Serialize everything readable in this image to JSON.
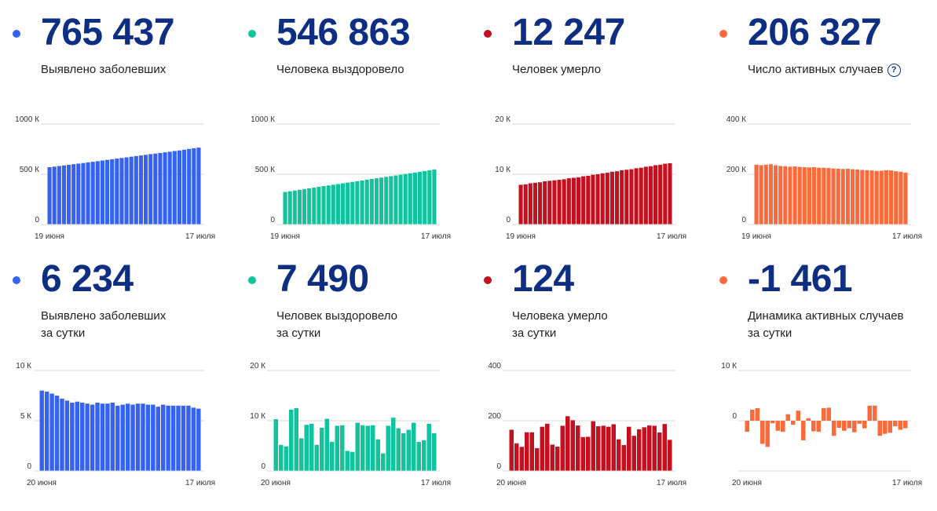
{
  "colors": {
    "detected": "#3562f0",
    "recovered": "#12c49e",
    "deaths": "#c5101f",
    "active": "#fb6a3b",
    "title_number": "#0d2e82"
  },
  "cards": [
    {
      "value": "765 437",
      "label_lines": [
        "Выявлено заболевших"
      ],
      "has_help": false
    },
    {
      "value": "546 863",
      "label_lines": [
        "Человека выздоровело"
      ],
      "has_help": false
    },
    {
      "value": "12 247",
      "label_lines": [
        "Человек умерло"
      ],
      "has_help": false
    },
    {
      "value": "206 327",
      "label_lines": [
        "Число активных случаев"
      ],
      "has_help": true,
      "help_icon": "question-circle-icon",
      "help_text": "?"
    },
    {
      "value": "6 234",
      "label_lines": [
        "Выявлено заболевших",
        "за сутки"
      ],
      "has_help": false
    },
    {
      "value": "7 490",
      "label_lines": [
        "Человек выздоровело",
        "за сутки"
      ],
      "has_help": false
    },
    {
      "value": "124",
      "label_lines": [
        "Человека умерло",
        "за сутки"
      ],
      "has_help": false
    },
    {
      "value": "-1 461",
      "label_lines": [
        "Динамика активных случаев",
        "за сутки"
      ],
      "has_help": false
    }
  ],
  "chart_data": [
    {
      "type": "bar",
      "color_key": "detected",
      "x_start": "19 июня",
      "x_end": "17 июля",
      "yticks": [
        {
          "v": 0,
          "label": "0"
        },
        {
          "v": 500,
          "label": "500 К"
        },
        {
          "v": 1000,
          "label": "1000 К"
        }
      ],
      "ylim": [
        0,
        1000
      ],
      "values": [
        570,
        576,
        582,
        588,
        594,
        600,
        606,
        612,
        618,
        624,
        630,
        637,
        643,
        649,
        656,
        662,
        668,
        675,
        681,
        687,
        693,
        700,
        706,
        712,
        718,
        724,
        731,
        737,
        744,
        752,
        759,
        765
      ]
    },
    {
      "type": "bar",
      "color_key": "recovered",
      "x_start": "19 июня",
      "x_end": "17 июля",
      "yticks": [
        {
          "v": 0,
          "label": "0"
        },
        {
          "v": 500,
          "label": "500 К"
        },
        {
          "v": 1000,
          "label": "1000 К"
        }
      ],
      "ylim": [
        0,
        1000
      ],
      "values": [
        324,
        331,
        338,
        345,
        352,
        360,
        367,
        375,
        382,
        389,
        396,
        403,
        410,
        417,
        424,
        431,
        438,
        446,
        453,
        460,
        467,
        474,
        481,
        488,
        495,
        503,
        510,
        517,
        524,
        532,
        539,
        547
      ]
    },
    {
      "type": "bar",
      "color_key": "deaths",
      "x_start": "19 июня",
      "x_end": "17 июля",
      "yticks": [
        {
          "v": 0,
          "label": "0"
        },
        {
          "v": 10,
          "label": "10 К"
        },
        {
          "v": 20,
          "label": "20 К"
        }
      ],
      "ylim": [
        0,
        20
      ],
      "values": [
        7.9,
        8.0,
        8.2,
        8.3,
        8.4,
        8.6,
        8.7,
        8.8,
        8.9,
        9.0,
        9.2,
        9.3,
        9.4,
        9.6,
        9.7,
        9.9,
        10.0,
        10.2,
        10.3,
        10.5,
        10.6,
        10.8,
        10.9,
        11.0,
        11.2,
        11.3,
        11.5,
        11.6,
        11.8,
        11.9,
        12.1,
        12.2
      ]
    },
    {
      "type": "bar",
      "color_key": "active",
      "x_start": "19 июня",
      "x_end": "17 июля",
      "yticks": [
        {
          "v": 0,
          "label": "0"
        },
        {
          "v": 200,
          "label": "200 К"
        },
        {
          "v": 400,
          "label": "400 К"
        }
      ],
      "ylim": [
        0,
        400
      ],
      "values": [
        238,
        236,
        238,
        240,
        236,
        233,
        232,
        230,
        231,
        229,
        228,
        227,
        228,
        226,
        226,
        225,
        223,
        222,
        221,
        222,
        220,
        219,
        217,
        216,
        215,
        213,
        214,
        216,
        215,
        212,
        210,
        206
      ]
    },
    {
      "type": "bar",
      "color_key": "detected",
      "x_start": "20 июня",
      "x_end": "17 июля",
      "yticks": [
        {
          "v": 0,
          "label": "0"
        },
        {
          "v": 5,
          "label": "5 К"
        },
        {
          "v": 10,
          "label": "10 К"
        }
      ],
      "ylim": [
        0,
        10
      ],
      "values": [
        8.0,
        7.9,
        7.7,
        7.5,
        7.2,
        7.0,
        6.8,
        6.9,
        6.8,
        6.7,
        6.6,
        6.8,
        6.7,
        6.7,
        6.8,
        6.5,
        6.6,
        6.7,
        6.6,
        6.7,
        6.7,
        6.6,
        6.6,
        6.4,
        6.6,
        6.5,
        6.5,
        6.5,
        6.5,
        6.5,
        6.3,
        6.2
      ]
    },
    {
      "type": "bar",
      "color_key": "recovered",
      "x_start": "20 июня",
      "x_end": "17 июля",
      "yticks": [
        {
          "v": 0,
          "label": "0"
        },
        {
          "v": 10,
          "label": "10 К"
        },
        {
          "v": 20,
          "label": "20 К"
        }
      ],
      "ylim": [
        0,
        20
      ],
      "values": [
        10.3,
        5.2,
        4.9,
        12.2,
        12.5,
        6.5,
        9.2,
        9.4,
        5.2,
        8.6,
        10.4,
        5.8,
        9.0,
        9.1,
        4.0,
        3.8,
        9.6,
        9.1,
        9.0,
        9.1,
        6.3,
        3.5,
        9.0,
        10.6,
        8.5,
        7.5,
        8.2,
        9.6,
        5.8,
        6.1,
        9.4,
        7.5
      ]
    },
    {
      "type": "bar",
      "color_key": "deaths",
      "x_start": "20 июня",
      "x_end": "17 июля",
      "yticks": [
        {
          "v": 0,
          "label": "0"
        },
        {
          "v": 200,
          "label": "200"
        },
        {
          "v": 400,
          "label": "400"
        }
      ],
      "ylim": [
        0,
        400
      ],
      "values": [
        164,
        110,
        96,
        154,
        154,
        91,
        176,
        188,
        105,
        97,
        180,
        218,
        202,
        181,
        135,
        136,
        198,
        178,
        180,
        176,
        186,
        126,
        103,
        176,
        140,
        166,
        174,
        181,
        180,
        153,
        187,
        124
      ]
    },
    {
      "type": "bar",
      "color_key": "active",
      "x_start": "20 июня",
      "x_end": "17 июля",
      "yticks": [
        {
          "v": 0,
          "label": "0"
        },
        {
          "v": 10,
          "label": "10 К"
        }
      ],
      "ylim": [
        -10,
        10
      ],
      "values": [
        -2.2,
        2.2,
        2.5,
        -4.6,
        -5.2,
        -0.5,
        -2.0,
        -2.2,
        1.3,
        -0.8,
        2.0,
        -3.9,
        0.5,
        -2.1,
        -2.2,
        2.5,
        2.6,
        -3.0,
        -1.4,
        -2.0,
        -1.5,
        -2.3,
        -0.6,
        -1.5,
        3.0,
        3.0,
        -3.0,
        -2.6,
        -2.4,
        -1.1,
        -1.8,
        -1.5
      ]
    }
  ]
}
